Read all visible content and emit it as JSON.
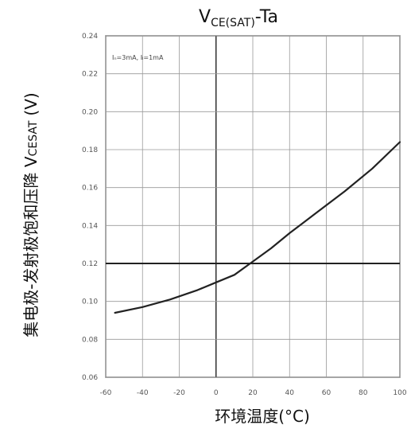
{
  "chart_data": {
    "type": "line",
    "title_main": "V",
    "title_sub": "CE(SAT)",
    "title_suffix": "-Ta",
    "xlabel": "环境温度(°C)",
    "ylabel": "集电极-发射极饱和压降 V",
    "ylabel_sub": "CESAT",
    "ylabel_unit": "(V)",
    "annotation": "Iₙ=3mA, Iₗ=1mA",
    "xlim": [
      -60,
      100
    ],
    "ylim": [
      0.06,
      0.24
    ],
    "x_ticks": [
      "-60",
      "-40",
      "-20",
      "0",
      "20",
      "40",
      "60",
      "80",
      "100"
    ],
    "y_ticks": [
      "0.06",
      "0.08",
      "0.10",
      "0.12",
      "0.14",
      "0.16",
      "0.18",
      "0.20",
      "0.22",
      "0.24"
    ],
    "grid": true,
    "reference_line_y": 0.12,
    "series": [
      {
        "x": [
          -55,
          -40,
          -25,
          -10,
          0,
          10,
          20,
          30,
          40,
          55,
          70,
          85,
          100
        ],
        "values": [
          0.094,
          0.097,
          0.101,
          0.106,
          0.11,
          0.114,
          0.121,
          0.128,
          0.136,
          0.147,
          0.158,
          0.17,
          0.184
        ]
      }
    ]
  }
}
